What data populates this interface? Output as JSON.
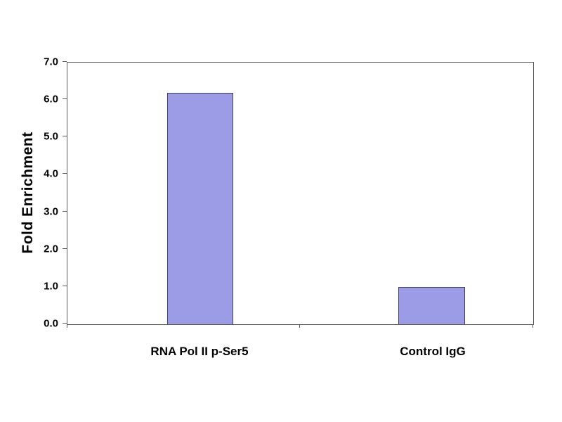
{
  "chart_data": {
    "type": "bar",
    "title": "",
    "xlabel": "",
    "ylabel": "Fold Enrichment",
    "categories": [
      "RNA Pol II p-Ser5",
      "Control IgG"
    ],
    "values": [
      6.2,
      1.0
    ],
    "ylim": [
      0,
      7
    ],
    "ytick_step": 1.0,
    "ytick_labels": [
      "0.0",
      "1.0",
      "2.0",
      "3.0",
      "4.0",
      "5.0",
      "6.0",
      "7.0"
    ],
    "grid": false,
    "legend_position": "none",
    "bar_fill_color": "#9b9be6",
    "bar_border_color": "#40405e",
    "axis_color": "#5a5a5a",
    "text_color": "#000000",
    "background_color": "#ffffff"
  }
}
